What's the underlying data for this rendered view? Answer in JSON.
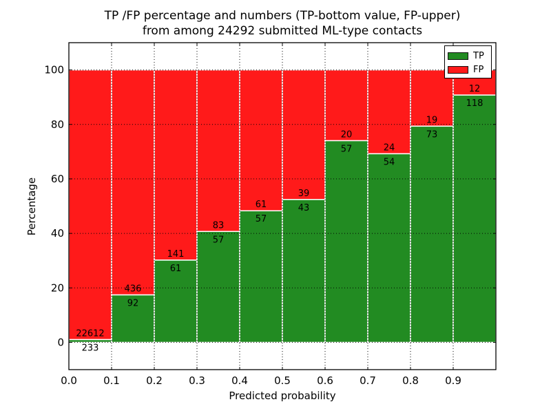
{
  "title": {
    "line1": "TP /FP percentage and numbers (TP-bottom value, FP-upper)",
    "line2": "from among 24292 submitted ML-type contacts"
  },
  "axes": {
    "xlabel": "Predicted probability",
    "ylabel": "Percentage",
    "xtick_labels": [
      "0.0",
      "0.1",
      "0.2",
      "0.3",
      "0.4",
      "0.5",
      "0.6",
      "0.7",
      "0.8",
      "0.9"
    ],
    "ytick_labels": [
      "0",
      "20",
      "40",
      "60",
      "80",
      "100"
    ],
    "xticks": [
      0.0,
      0.1,
      0.2,
      0.3,
      0.4,
      0.5,
      0.6,
      0.7,
      0.8,
      0.9
    ],
    "yticks": [
      0,
      20,
      40,
      60,
      80,
      100
    ],
    "xlim": [
      0,
      1
    ],
    "ylim": [
      -10,
      110
    ],
    "grid": true,
    "grid_style": "dotted-black",
    "bar_edge_color": "#ffffff"
  },
  "legend": {
    "position": "upper-right",
    "entries": [
      {
        "label": "TP",
        "color": "#228b22"
      },
      {
        "label": "FP",
        "color": "#ff1a1a"
      }
    ]
  },
  "chart_data": {
    "type": "bar",
    "stacked": true,
    "normalized": "percent",
    "title": "TP /FP percentage and numbers (TP-bottom value, FP-upper) from among 24292 submitted ML-type contacts",
    "xlabel": "Predicted probability",
    "ylabel": "Percentage",
    "total_contacts": 24292,
    "bin_edges": [
      0.0,
      0.1,
      0.2,
      0.3,
      0.4,
      0.5,
      0.6,
      0.7,
      0.8,
      0.9,
      1.0
    ],
    "categories": [
      "0.0-0.1",
      "0.1-0.2",
      "0.2-0.3",
      "0.3-0.4",
      "0.4-0.5",
      "0.5-0.6",
      "0.6-0.7",
      "0.7-0.8",
      "0.8-0.9",
      "0.9-1.0"
    ],
    "series": [
      {
        "name": "TP",
        "color": "#228b22",
        "counts": [
          233,
          92,
          61,
          57,
          57,
          43,
          57,
          54,
          73,
          118
        ],
        "percent": [
          1.0,
          17.4,
          30.2,
          40.7,
          48.3,
          52.4,
          74.0,
          69.2,
          79.3,
          90.8
        ]
      },
      {
        "name": "FP",
        "color": "#ff1a1a",
        "counts": [
          22612,
          436,
          141,
          83,
          61,
          39,
          20,
          24,
          19,
          12
        ],
        "percent": [
          99.0,
          82.6,
          69.8,
          59.3,
          51.7,
          47.6,
          26.0,
          30.8,
          20.7,
          9.2
        ]
      }
    ],
    "ylim": [
      -10,
      110
    ],
    "xlim": [
      0,
      1
    ],
    "legend_position": "upper-right"
  }
}
